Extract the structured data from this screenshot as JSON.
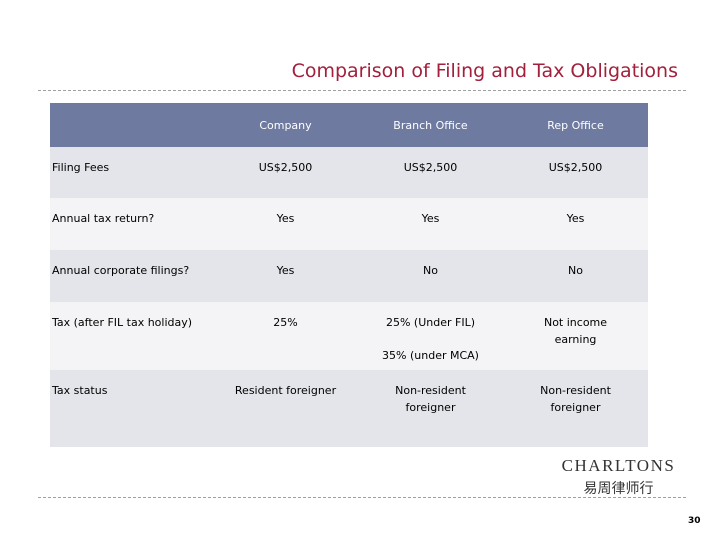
{
  "header": {
    "title": "Comparison of Filing and Tax Obligations"
  },
  "table": {
    "columns": [
      "",
      "Company",
      "Branch Office",
      "Rep Office"
    ],
    "rows": [
      [
        "Filing Fees",
        "US$2,500",
        "US$2,500",
        "US$2,500"
      ],
      [
        "Annual tax return?",
        "Yes",
        "Yes",
        "Yes"
      ],
      [
        "Annual corporate filings?",
        "Yes",
        "No",
        "No"
      ],
      [
        "Tax (after FIL tax holiday)",
        "25%",
        [
          "25% (Under FIL)",
          "35% (under MCA)"
        ],
        "Not income earning"
      ],
      [
        "Tax status",
        "Resident foreigner",
        "Non-resident foreigner",
        "Non-resident foreigner"
      ]
    ]
  },
  "logo": {
    "name": "CHARLTONS",
    "chinese": "易周律师行"
  },
  "footer": {
    "page_number": "30"
  }
}
